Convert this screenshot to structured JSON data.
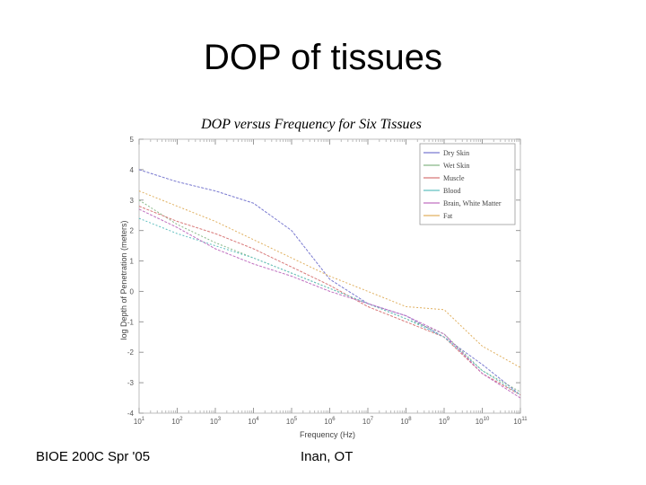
{
  "slide": {
    "title": "DOP of tissues",
    "footer_left": "BIOE 200C Spr '05",
    "footer_center": "Inan, OT"
  },
  "chart_data": {
    "type": "line",
    "title": "DOP versus Frequency for Six Tissues",
    "xlabel": "Frequency (Hz)",
    "ylabel": "log Depth of Penetration (meters)",
    "xscale": "log",
    "xlim": [
      10,
      100000000000
    ],
    "ylim": [
      -4,
      5
    ],
    "x_ticks": [
      "10^1",
      "10^2",
      "10^3",
      "10^4",
      "10^5",
      "10^6",
      "10^7",
      "10^8",
      "10^9",
      "10^10",
      "10^11"
    ],
    "y_ticks": [
      "5",
      "4",
      "3",
      "2",
      "1",
      "0",
      "-1",
      "-2",
      "-3",
      "-4"
    ],
    "legend_position": "top-right",
    "series": [
      {
        "name": "Dry Skin",
        "color": "#7a7ad0",
        "x": [
          10,
          100,
          1000,
          10000,
          100000,
          1000000,
          10000000,
          100000000,
          1000000000,
          10000000000,
          100000000000
        ],
        "values": [
          4.0,
          3.6,
          3.3,
          2.9,
          2.0,
          0.4,
          -0.4,
          -0.8,
          -1.5,
          -2.4,
          -3.4
        ]
      },
      {
        "name": "Wet Skin",
        "color": "#88b888",
        "x": [
          10,
          100,
          1000,
          10000,
          100000,
          1000000,
          10000000,
          100000000,
          1000000000,
          10000000000,
          100000000000
        ],
        "values": [
          3.0,
          2.2,
          1.6,
          1.1,
          0.6,
          0.1,
          -0.4,
          -0.9,
          -1.4,
          -2.6,
          -3.3
        ]
      },
      {
        "name": "Muscle",
        "color": "#d87878",
        "x": [
          10,
          100,
          1000,
          10000,
          100000,
          1000000,
          10000000,
          100000000,
          1000000000,
          10000000000,
          100000000000
        ],
        "values": [
          2.8,
          2.3,
          1.9,
          1.4,
          0.8,
          0.2,
          -0.5,
          -1.0,
          -1.5,
          -2.7,
          -3.4
        ]
      },
      {
        "name": "Blood",
        "color": "#60c0c0",
        "x": [
          10,
          100,
          1000,
          10000,
          100000,
          1000000,
          10000000,
          100000000,
          1000000000,
          10000000000,
          100000000000
        ],
        "values": [
          2.4,
          1.9,
          1.5,
          1.1,
          0.6,
          0.1,
          -0.4,
          -0.9,
          -1.5,
          -2.6,
          -3.4
        ]
      },
      {
        "name": "Brain, White Matter",
        "color": "#c070c0",
        "x": [
          10,
          100,
          1000,
          10000,
          100000,
          1000000,
          10000000,
          100000000,
          1000000000,
          10000000000,
          100000000000
        ],
        "values": [
          2.7,
          2.1,
          1.4,
          0.9,
          0.5,
          0.0,
          -0.4,
          -0.8,
          -1.4,
          -2.7,
          -3.5
        ]
      },
      {
        "name": "Fat",
        "color": "#e0b060",
        "x": [
          10,
          100,
          1000,
          10000,
          100000,
          1000000,
          10000000,
          100000000,
          1000000000,
          10000000000,
          100000000000
        ],
        "values": [
          3.3,
          2.8,
          2.3,
          1.7,
          1.1,
          0.5,
          0.0,
          -0.5,
          -0.6,
          -1.8,
          -2.5
        ]
      }
    ]
  }
}
